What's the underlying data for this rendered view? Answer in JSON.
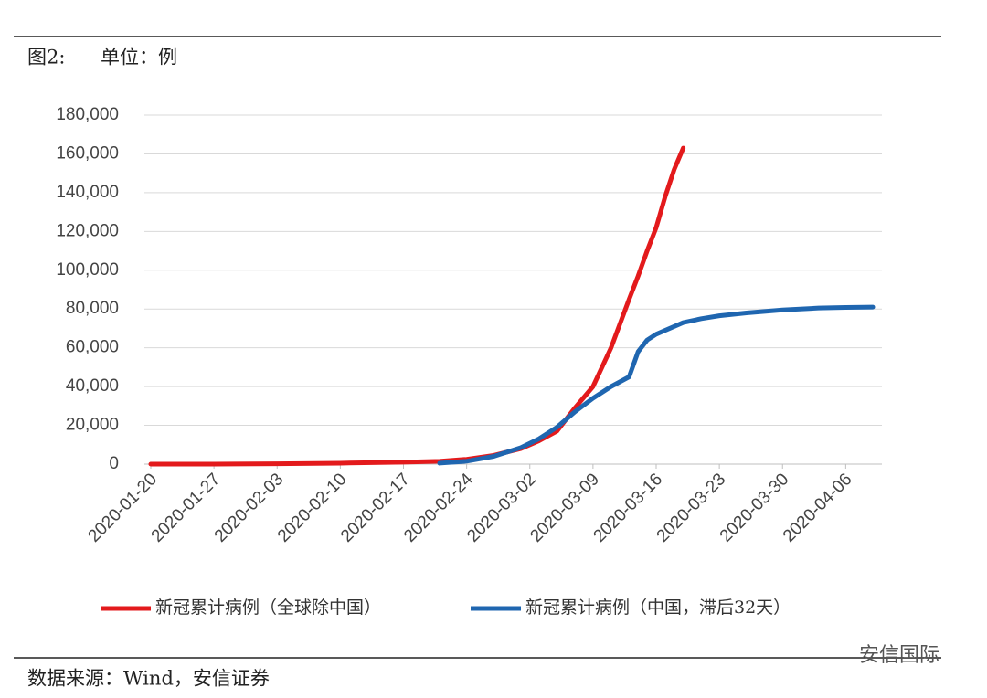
{
  "header": {
    "figure": "图2:",
    "unit": "单位：例"
  },
  "chart_data": {
    "type": "line",
    "x": [
      "2020-01-20",
      "2020-01-27",
      "2020-02-03",
      "2020-02-10",
      "2020-02-17",
      "2020-02-21",
      "2020-02-24",
      "2020-02-27",
      "2020-03-01",
      "2020-03-03",
      "2020-03-05",
      "2020-03-07",
      "2020-03-09",
      "2020-03-11",
      "2020-03-13",
      "2020-03-14",
      "2020-03-15",
      "2020-03-16",
      "2020-03-17",
      "2020-03-18",
      "2020-03-19",
      "2020-03-21",
      "2020-03-23",
      "2020-03-26",
      "2020-03-30",
      "2020-04-03",
      "2020-04-06",
      "2020-04-09"
    ],
    "series": [
      {
        "name": "新冠累计病例（全球除中国）",
        "color": "#e31a1c",
        "values": [
          0,
          0,
          200,
          500,
          1000,
          1500,
          2500,
          4500,
          8000,
          12000,
          17000,
          29000,
          40000,
          60000,
          85000,
          97000,
          110000,
          122000,
          138000,
          152000,
          163000,
          null,
          null,
          null,
          null,
          null,
          null,
          null
        ]
      },
      {
        "name": "新冠累计病例（中国，滞后32天）",
        "color": "#1f66b0",
        "values": [
          null,
          null,
          null,
          null,
          null,
          500,
          1500,
          4000,
          8500,
          13000,
          19000,
          27000,
          34000,
          40000,
          45000,
          58000,
          64000,
          67000,
          69000,
          71000,
          73000,
          75000,
          76500,
          78000,
          79500,
          80500,
          80800,
          81000
        ]
      }
    ],
    "xlim": [
      "2020-01-20",
      "2020-04-09"
    ],
    "xticks": [
      "2020-01-20",
      "2020-01-27",
      "2020-02-03",
      "2020-02-10",
      "2020-02-17",
      "2020-02-24",
      "2020-03-02",
      "2020-03-09",
      "2020-03-16",
      "2020-03-23",
      "2020-03-30",
      "2020-04-06"
    ],
    "ylim": [
      0,
      180000
    ],
    "yticks": [
      0,
      {
        "value": 20000,
        "label": "20,000"
      },
      {
        "value": 40000,
        "label": "40,000"
      },
      {
        "value": 60000,
        "label": "60,000"
      },
      {
        "value": 80000,
        "label": "80,000"
      },
      {
        "value": 100000,
        "label": "100,000"
      },
      {
        "value": 120000,
        "label": "120,000"
      },
      {
        "value": 140000,
        "label": "140,000"
      },
      {
        "value": 160000,
        "label": "160,000"
      },
      {
        "value": 180000,
        "label": "180,000"
      }
    ],
    "grid": true
  },
  "footer": {
    "source": "数据来源：Wind，安信证券",
    "watermark": "安信国际"
  }
}
